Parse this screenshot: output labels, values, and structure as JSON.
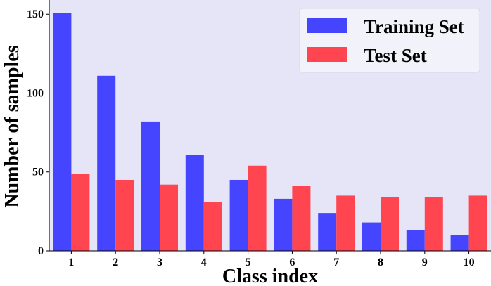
{
  "chart_data": {
    "type": "bar",
    "title": "",
    "xlabel": "Class index",
    "ylabel": "Number of samples",
    "categories": [
      "1",
      "2",
      "3",
      "4",
      "5",
      "6",
      "7",
      "8",
      "9",
      "10"
    ],
    "series": [
      {
        "name": "Training Set",
        "color": "#4545ff",
        "values": [
          151,
          111,
          82,
          61,
          45,
          33,
          24,
          18,
          13,
          10
        ]
      },
      {
        "name": "Test Set",
        "color": "#ff4550",
        "values": [
          49,
          45,
          42,
          31,
          54,
          41,
          35,
          34,
          34,
          35
        ]
      }
    ],
    "yticks": [
      "0",
      "50",
      "100",
      "150"
    ],
    "ylim": [
      0,
      151
    ],
    "grid": false,
    "legend_position": "top-right",
    "background": "#e5e5f7"
  }
}
